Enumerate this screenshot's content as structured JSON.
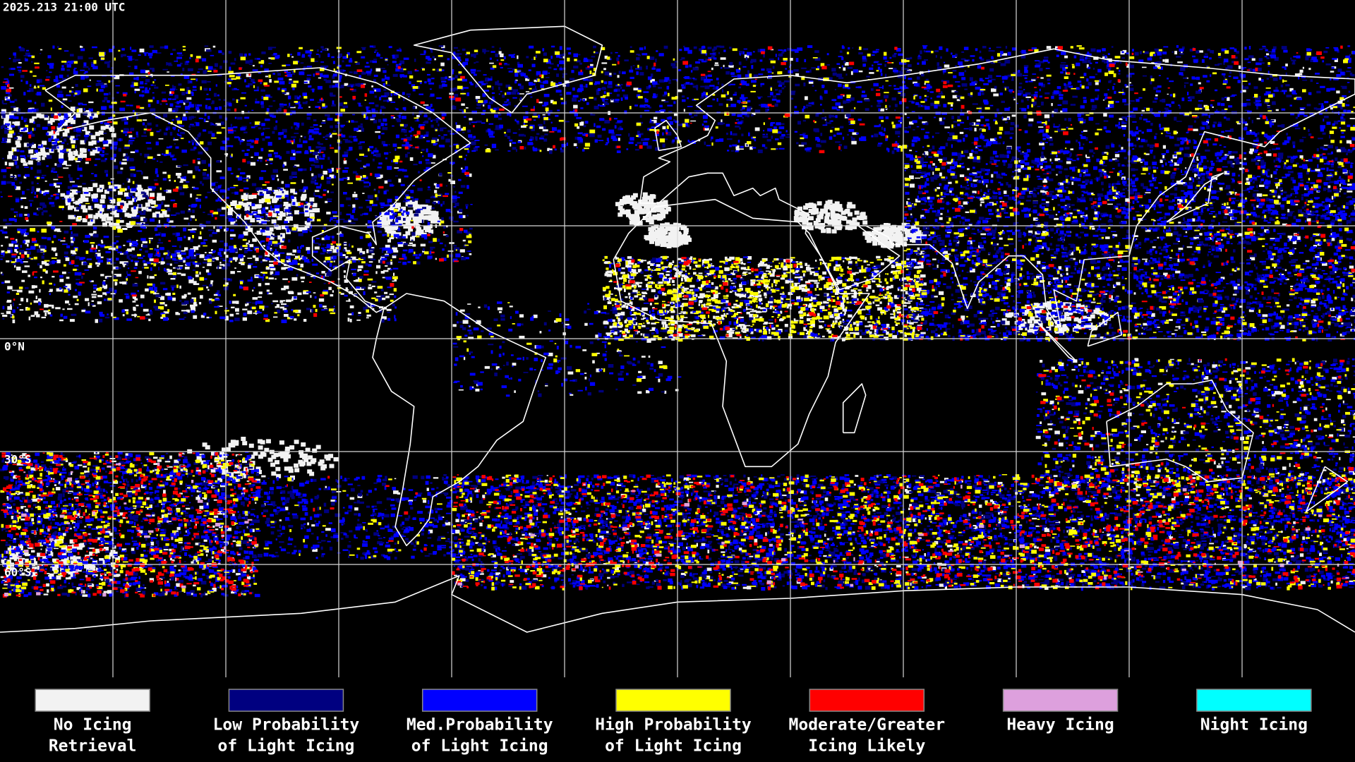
{
  "timestamp": "2025.213 21:00 UTC",
  "latitude_labels": [
    "0°N",
    "30°S",
    "60°S"
  ],
  "legend": [
    {
      "label": [
        "No Icing",
        "Retrieval"
      ],
      "color": "#f2f2f2"
    },
    {
      "label": [
        "Low Probability",
        "of Light Icing"
      ],
      "color": "#000080"
    },
    {
      "label": [
        "Med.Probability",
        "of Light Icing"
      ],
      "color": "#0000ff"
    },
    {
      "label": [
        "High Probability",
        "of Light Icing"
      ],
      "color": "#ffff00"
    },
    {
      "label": [
        "Moderate/Greater",
        "Icing Likely"
      ],
      "color": "#ff0000"
    },
    {
      "label": [
        "Heavy Icing"
      ],
      "color": "#dda0dd"
    },
    {
      "label": [
        "Night Icing"
      ],
      "color": "#00ffff"
    }
  ]
}
